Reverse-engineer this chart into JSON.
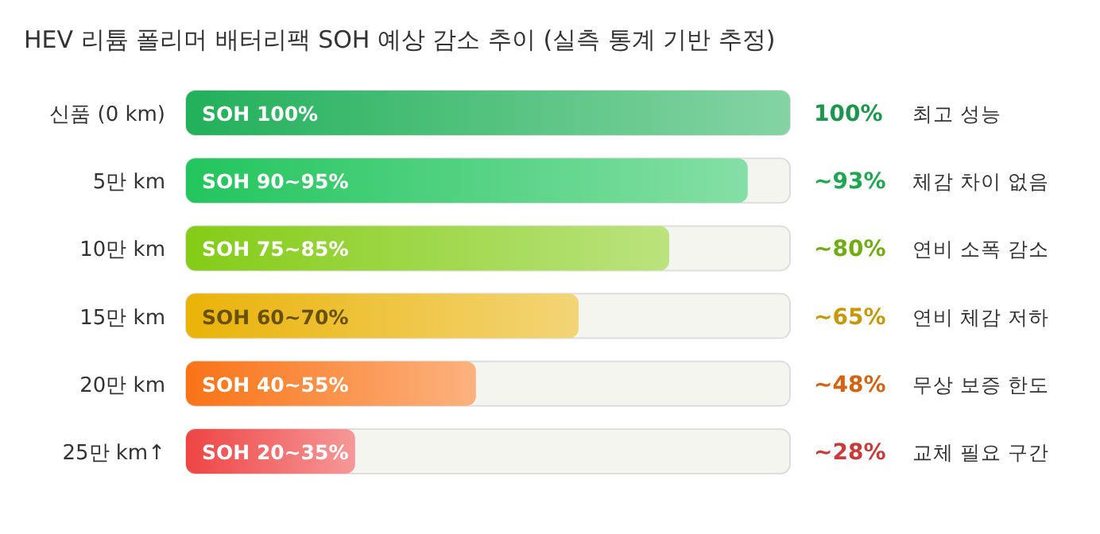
{
  "chart_data": {
    "type": "bar",
    "orientation": "horizontal",
    "title": "HEV 리튬 폴리머 배터리팩 SOH 예상 감소 추이 (실측 통계 기반 추정)",
    "categories": [
      "신품 (0 km)",
      "5만 km",
      "10만 km",
      "15만 km",
      "20만 km",
      "25만 km↑"
    ],
    "values": [
      100,
      93,
      80,
      65,
      48,
      28
    ],
    "colors": [
      "#22b05a",
      "#22c55e",
      "#84cc16",
      "#eab308",
      "#f97316",
      "#ef4444"
    ],
    "value_labels": [
      "100%",
      "~93%",
      "~80%",
      "~65%",
      "~48%",
      "~28%"
    ],
    "annotations": [
      "SOH 100%",
      "SOH 90~95%",
      "SOH 75~85%",
      "SOH 60~70%",
      "SOH 40~55%",
      "SOH 20~35%",
      "최고 성능",
      "체감 차이 없음",
      "연비 소폭 감소",
      "연비 체감 저하",
      "무상 보증 한도",
      "교체 필요 구간"
    ]
  }
}
